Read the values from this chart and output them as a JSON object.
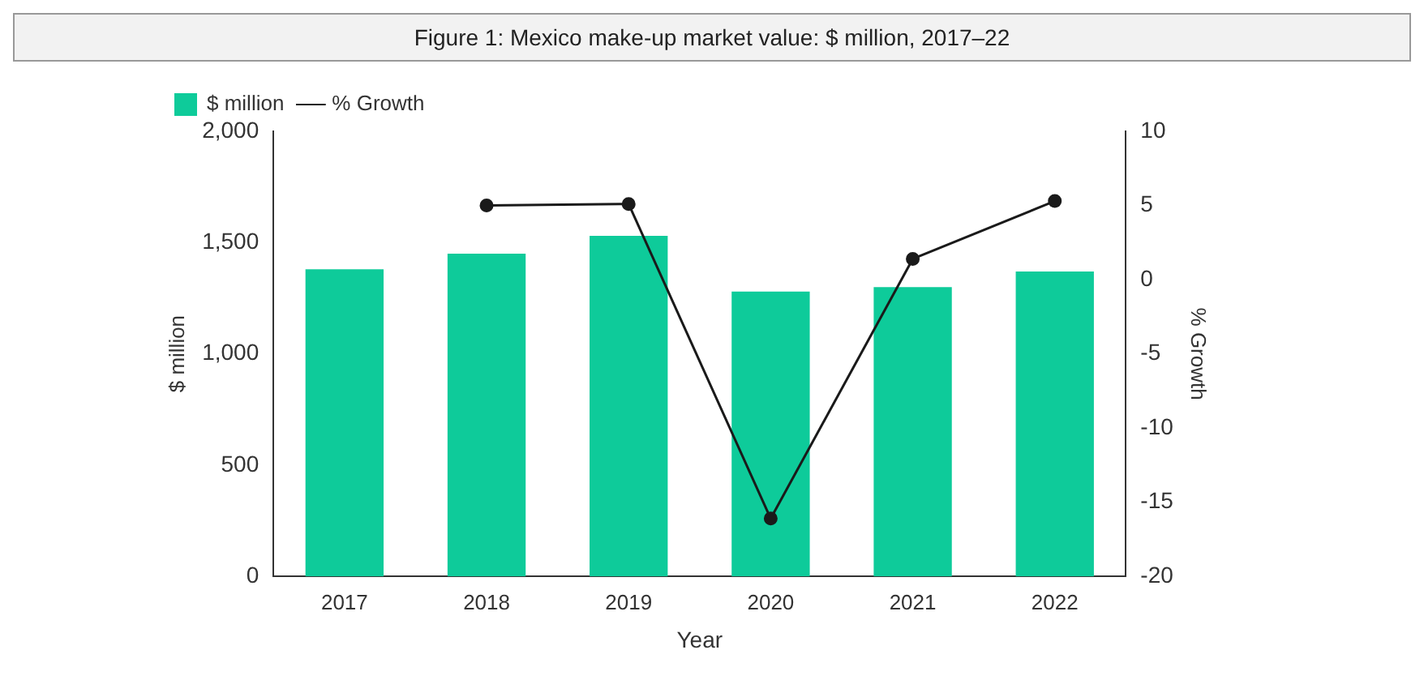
{
  "chart_data": {
    "type": "bar",
    "title": "Figure 1: Mexico make-up market value: $ million, 2017–22",
    "categories": [
      "2017",
      "2018",
      "2019",
      "2020",
      "2021",
      "2022"
    ],
    "series": [
      {
        "name": "$ million",
        "color": "#0ecb9a",
        "values": [
          1380,
          1450,
          1530,
          1280,
          1300,
          1370
        ]
      },
      {
        "name": "% Growth",
        "type": "line",
        "axis": "y2",
        "color": "#1a1a1a",
        "marker": "circle",
        "values": [
          null,
          5.0,
          5.1,
          -16.1,
          1.4,
          5.3
        ]
      }
    ],
    "xlabel": "Year",
    "ylabel": "$ million",
    "y2label": "% Growth",
    "ylim": [
      0,
      2000
    ],
    "yticks": [
      0,
      {
        "value": 500,
        "label": "500"
      },
      {
        "value": 1000,
        "label": "1,000"
      },
      {
        "value": 1500,
        "label": "1,500"
      },
      {
        "value": 2000,
        "label": "2,000"
      }
    ],
    "y2lim": [
      -20,
      10
    ],
    "y2ticks": [
      -20,
      -15,
      -10,
      -5,
      0,
      5,
      10
    ],
    "grid": false,
    "legend": "top left"
  }
}
